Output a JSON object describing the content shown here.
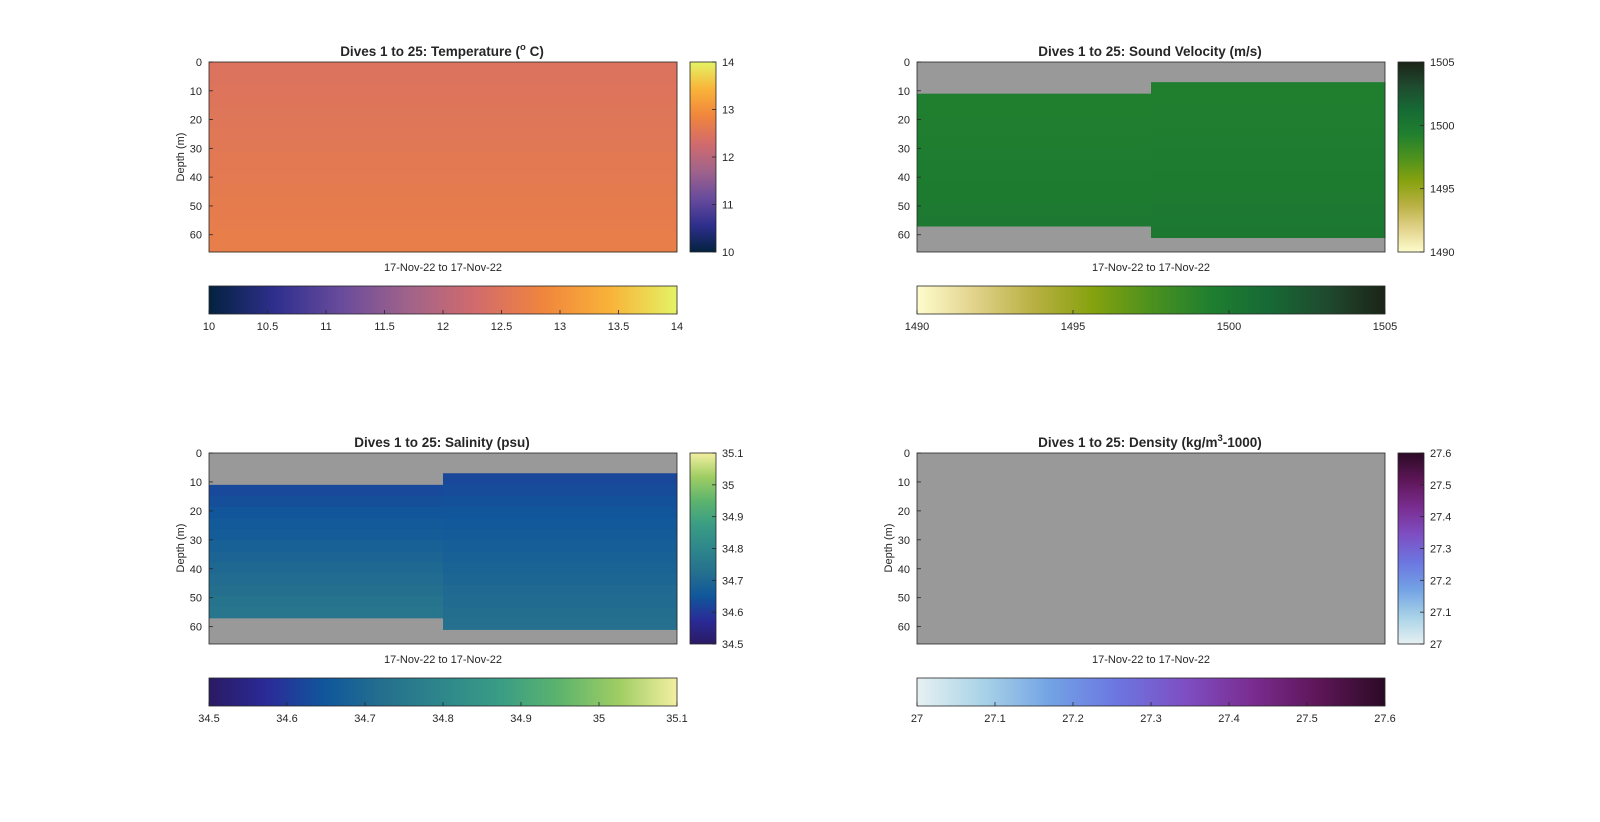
{
  "chart_data": [
    {
      "type": "heatmap",
      "title": "Dives 1 to 25: Temperature (",
      "title_super": "o",
      "title_after": " C)",
      "xlabel": "17-Nov-22 to 17-Nov-22",
      "ylabel": "Depth (m)",
      "y_ticks": [
        "0",
        "10",
        "20",
        "30",
        "40",
        "50",
        "60"
      ],
      "ylim": [
        0,
        66
      ],
      "colormap": [
        "#03223f",
        "#2f2f8e",
        "#6a4c9c",
        "#a1638a",
        "#d26b6c",
        "#f0853d",
        "#f9b339",
        "#e4f364"
      ],
      "clim": [
        10,
        14
      ],
      "right_colorbar_ticks": [
        "10",
        "11",
        "12",
        "13",
        "14"
      ],
      "bottom_colorbar_ticks": [
        "10",
        "10.5",
        "11",
        "11.5",
        "12",
        "12.5",
        "13",
        "13.5",
        "14"
      ],
      "dives": [
        {
          "x_span": [
            0,
            0.5
          ],
          "valid_depth": [
            0,
            66
          ],
          "top_value": 12.45,
          "bottom_value": 12.72
        },
        {
          "x_span": [
            0.5,
            1
          ],
          "valid_depth": [
            0,
            66
          ],
          "top_value": 12.45,
          "bottom_value": 12.72
        }
      ],
      "nodata_color": "#999999"
    },
    {
      "type": "heatmap",
      "title": "Dives 1 to 25: Sound Velocity (m/s)",
      "xlabel": "17-Nov-22 to 17-Nov-22",
      "ylabel": "",
      "y_ticks": [
        "0",
        "10",
        "20",
        "30",
        "40",
        "50",
        "60"
      ],
      "ylim": [
        0,
        66
      ],
      "colormap": [
        "#fefccd",
        "#e1d28a",
        "#b8b042",
        "#86a20e",
        "#4c911e",
        "#1f7f2f",
        "#166a35",
        "#1f4a2e",
        "#1b2418"
      ],
      "clim": [
        1490,
        1505
      ],
      "right_colorbar_ticks": [
        "1490",
        "1495",
        "1500",
        "1505"
      ],
      "bottom_colorbar_ticks": [
        "1490",
        "1495",
        "1500",
        "1505"
      ],
      "dives": [
        {
          "x_span": [
            0,
            0.5
          ],
          "valid_depth": [
            11,
            57
          ],
          "top_value": 1499.3,
          "bottom_value": 1499.9
        },
        {
          "x_span": [
            0.5,
            1
          ],
          "valid_depth": [
            7,
            61
          ],
          "top_value": 1499.3,
          "bottom_value": 1500.0
        }
      ],
      "nodata_color": "#999999"
    },
    {
      "type": "heatmap",
      "title": "Dives 1 to 25: Salinity (psu)",
      "xlabel": "17-Nov-22 to 17-Nov-22",
      "ylabel": "Depth (m)",
      "y_ticks": [
        "0",
        "10",
        "20",
        "30",
        "40",
        "50",
        "60"
      ],
      "ylim": [
        0,
        66
      ],
      "colormap": [
        "#2a1a63",
        "#2a2b98",
        "#10579b",
        "#25708e",
        "#2e878b",
        "#3a9d84",
        "#5db46d",
        "#9fcd63",
        "#f3efa1"
      ],
      "clim": [
        34.5,
        35.1
      ],
      "right_colorbar_ticks": [
        "34.5",
        "34.6",
        "34.7",
        "34.8",
        "34.9",
        "35",
        "35.1"
      ],
      "bottom_colorbar_ticks": [
        "34.5",
        "34.6",
        "34.7",
        "34.8",
        "34.9",
        "35",
        "35.1"
      ],
      "dives": [
        {
          "x_span": [
            0,
            0.5
          ],
          "valid_depth": [
            11,
            57
          ],
          "top_value": 34.62,
          "bottom_value": 34.75
        },
        {
          "x_span": [
            0.5,
            1
          ],
          "valid_depth": [
            7,
            61
          ],
          "top_value": 34.62,
          "bottom_value": 34.73
        }
      ],
      "nodata_color": "#999999"
    },
    {
      "type": "heatmap",
      "title": "Dives 1 to 25: Density (kg/m",
      "title_super": "3",
      "title_after": "-1000)",
      "xlabel": "17-Nov-22 to 17-Nov-22",
      "ylabel": "Depth (m)",
      "y_ticks": [
        "0",
        "10",
        "20",
        "30",
        "40",
        "50",
        "60"
      ],
      "ylim": [
        0,
        66
      ],
      "colormap": [
        "#e7f1f2",
        "#a8d2e7",
        "#73a2e5",
        "#6c76e0",
        "#7e4fc3",
        "#7a2d91",
        "#5e1658",
        "#2b0a25"
      ],
      "clim": [
        27,
        27.6
      ],
      "right_colorbar_ticks": [
        "27",
        "27.1",
        "27.2",
        "27.3",
        "27.4",
        "27.5",
        "27.6"
      ],
      "bottom_colorbar_ticks": [
        "27",
        "27.1",
        "27.2",
        "27.3",
        "27.4",
        "27.5",
        "27.6"
      ],
      "dives": [],
      "nodata_color": "#999999"
    }
  ]
}
